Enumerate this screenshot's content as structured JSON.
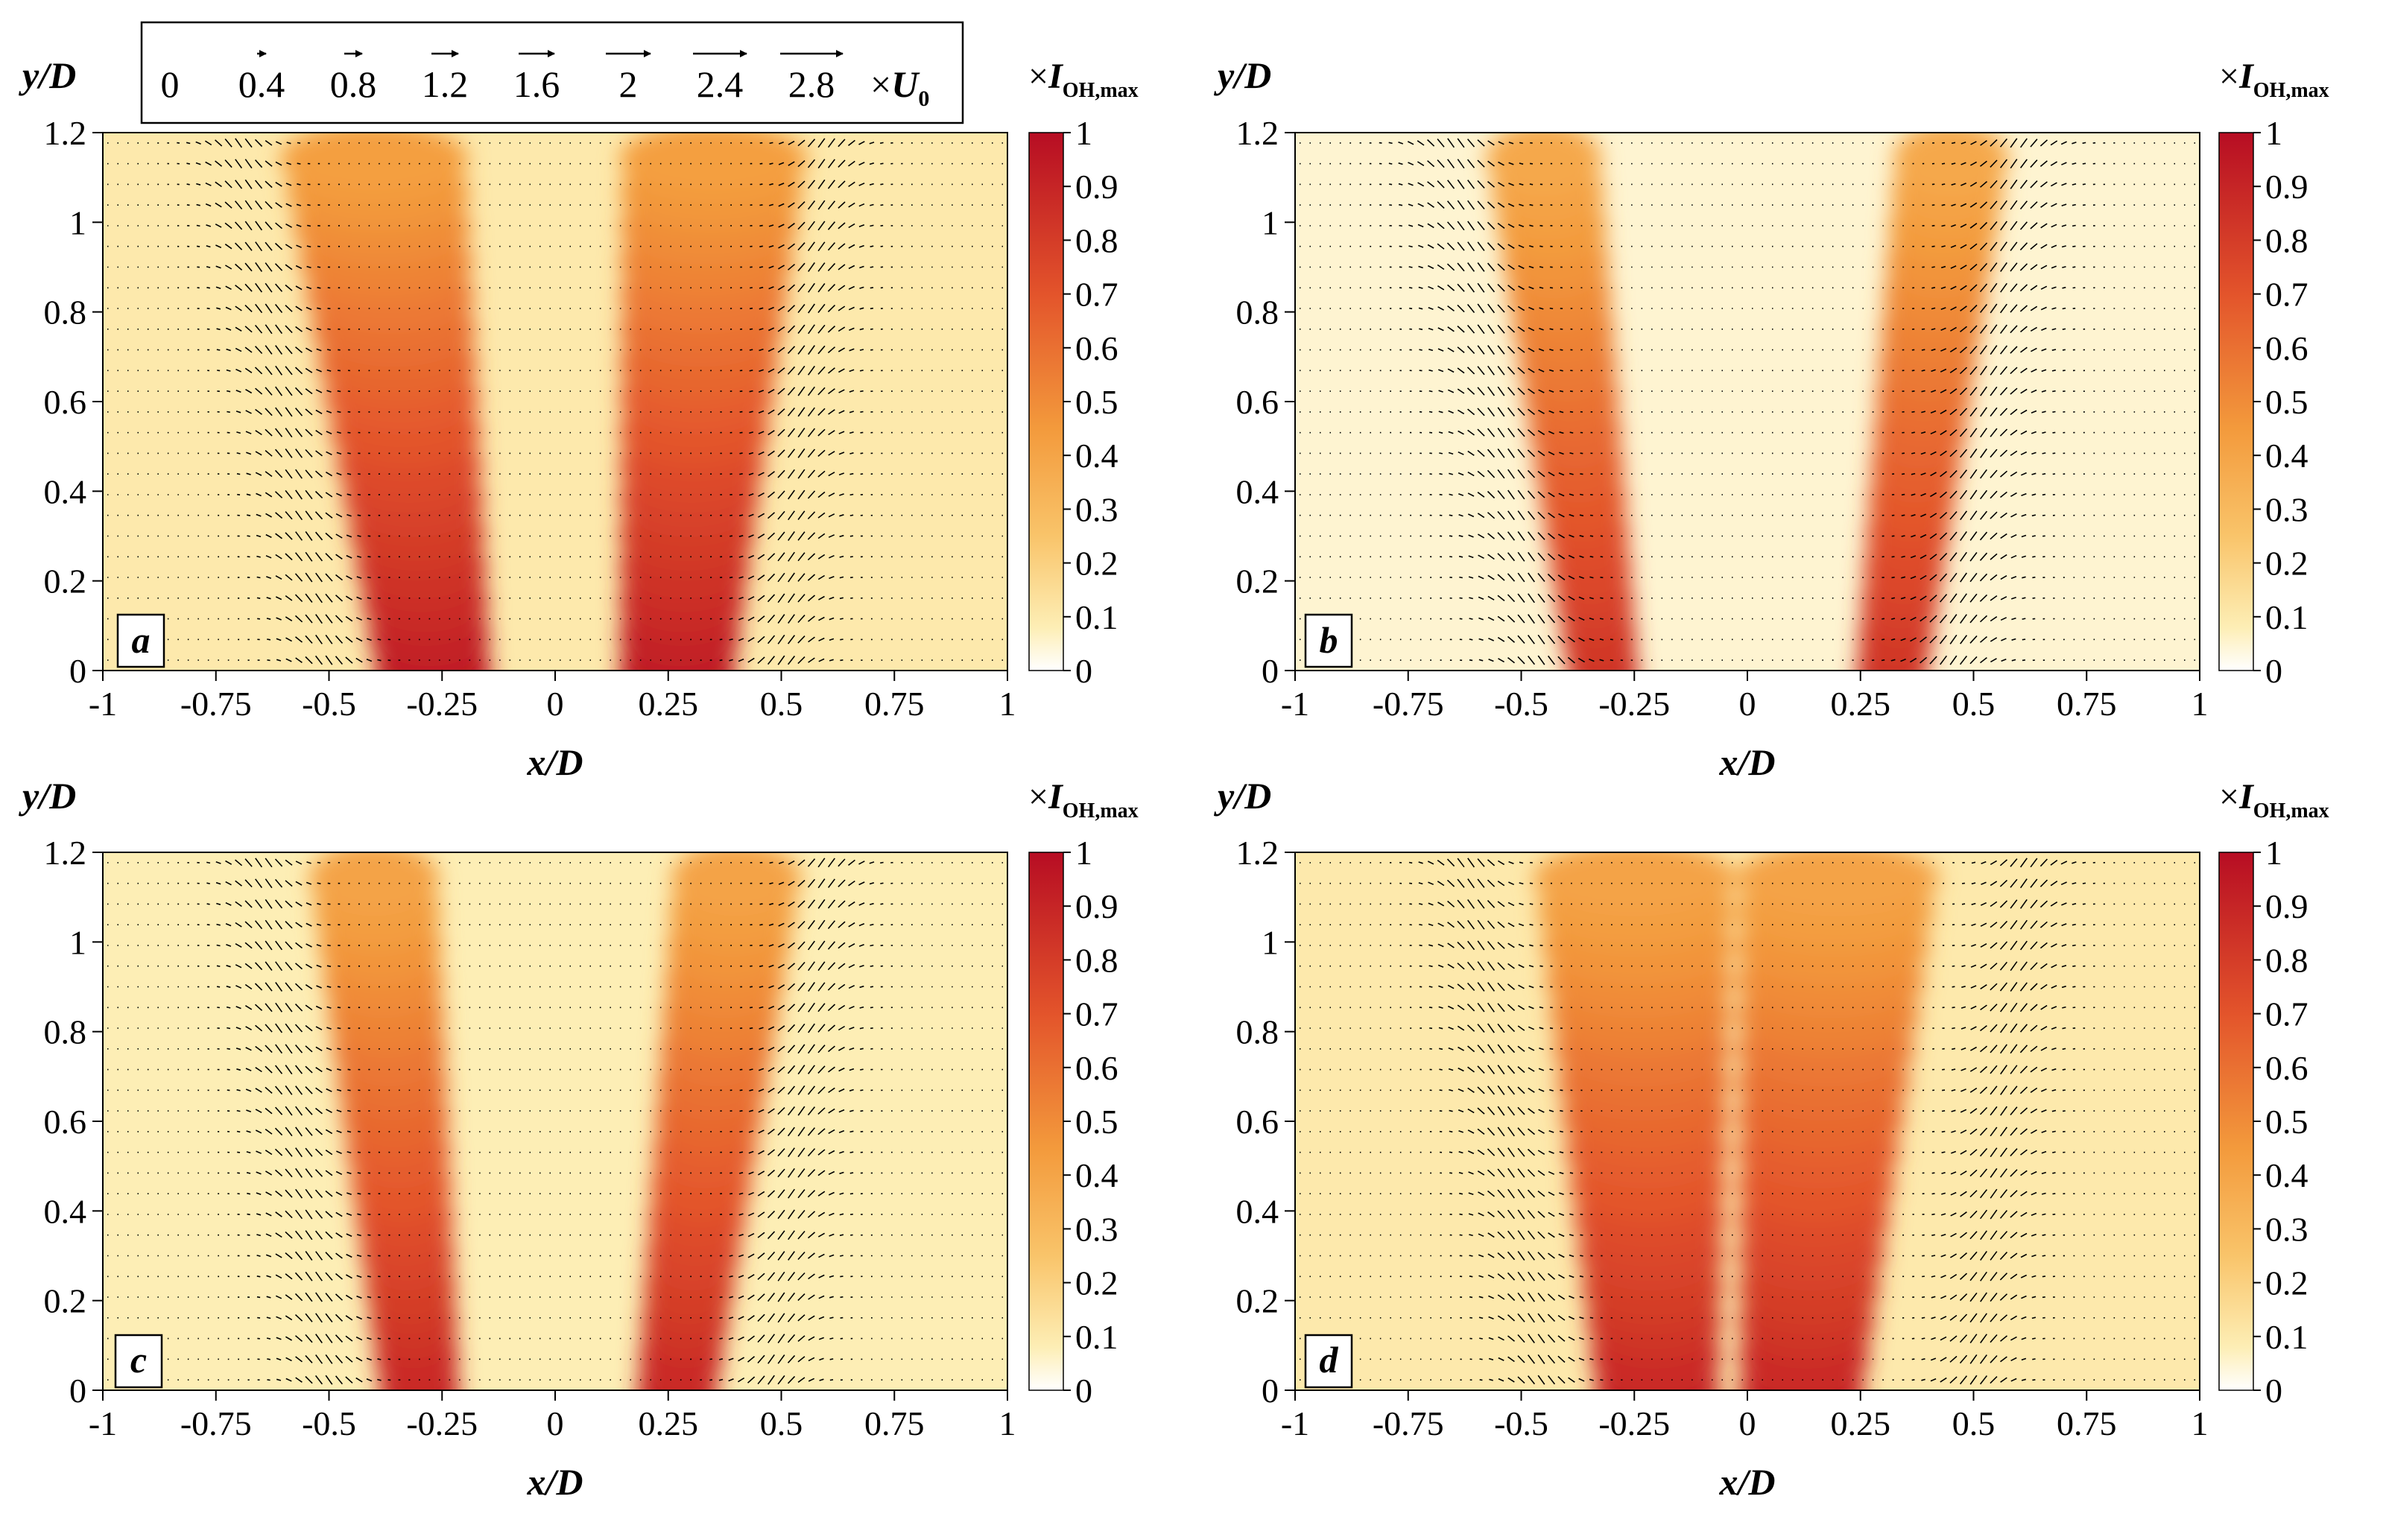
{
  "velocity_legend": {
    "labels": [
      "0",
      "0.4",
      "0.8",
      "1.2",
      "1.6",
      "2",
      "2.4",
      "2.8"
    ],
    "magnitudes": [
      0,
      0.4,
      0.8,
      1.2,
      1.6,
      2,
      2.4,
      2.8
    ],
    "unit_prefix": "×",
    "unit_symbol": "U",
    "unit_subscript": "0"
  },
  "colormap": {
    "stops": [
      "#ffffff",
      "#fdeeb5",
      "#f9c46a",
      "#f39a3c",
      "#e3542b",
      "#b70d23"
    ],
    "stop_values": [
      0,
      0.08,
      0.25,
      0.45,
      0.7,
      1.0
    ]
  },
  "chart_data": [
    {
      "type": "heatmap",
      "panel_label": "a",
      "title": "",
      "xlabel": "x/D",
      "ylabel": "y/D",
      "xlim": [
        -1,
        1
      ],
      "ylim": [
        0,
        1.2
      ],
      "xticks": [
        "-1",
        "-0.75",
        "-0.5",
        "-0.25",
        "0",
        "0.25",
        "0.5",
        "0.75",
        "1"
      ],
      "xtick_values": [
        -1,
        -0.75,
        -0.5,
        -0.25,
        0,
        0.25,
        0.5,
        0.75,
        1
      ],
      "yticks": [
        "0",
        "0.2",
        "0.4",
        "0.6",
        "0.8",
        "1",
        "1.2"
      ],
      "ytick_values": [
        0,
        0.2,
        0.4,
        0.6,
        0.8,
        1,
        1.2
      ],
      "colorbar_label_prefix": "×",
      "colorbar_label_symbol": "I",
      "colorbar_label_subscript": "OH,max",
      "colorbar_ticks": [
        "0",
        "0.1",
        "0.2",
        "0.3",
        "0.4",
        "0.5",
        "0.6",
        "0.7",
        "0.8",
        "0.9",
        "1"
      ],
      "colorbar_tick_values": [
        0,
        0.1,
        0.2,
        0.3,
        0.4,
        0.5,
        0.6,
        0.7,
        0.8,
        0.9,
        1
      ],
      "colorbar_range": [
        0,
        1
      ],
      "intensity_ridges": [
        {
          "x_at_base": -0.27,
          "x_at_top": -0.4,
          "peak": 0.95,
          "width": 0.13
        },
        {
          "x_at_base": 0.27,
          "x_at_top": 0.35,
          "peak": 0.95,
          "width": 0.13
        }
      ],
      "background_level": 0.1,
      "shear_layers": [
        {
          "x_at_base": -0.5,
          "x_at_top": -0.7,
          "width": 0.1
        },
        {
          "x_at_base": 0.5,
          "x_at_top": 0.6,
          "width": 0.1
        }
      ]
    },
    {
      "type": "heatmap",
      "panel_label": "b",
      "title": "",
      "xlabel": "x/D",
      "ylabel": "y/D",
      "xlim": [
        -1,
        1
      ],
      "ylim": [
        0,
        1.2
      ],
      "xticks": [
        "-1",
        "-0.75",
        "-0.5",
        "-0.25",
        "0",
        "0.25",
        "0.5",
        "0.75",
        "1"
      ],
      "xtick_values": [
        -1,
        -0.75,
        -0.5,
        -0.25,
        0,
        0.25,
        0.5,
        0.75,
        1
      ],
      "yticks": [
        "0",
        "0.2",
        "0.4",
        "0.6",
        "0.8",
        "1",
        "1.2"
      ],
      "ytick_values": [
        0,
        0.2,
        0.4,
        0.6,
        0.8,
        1,
        1.2
      ],
      "colorbar_label_prefix": "×",
      "colorbar_label_symbol": "I",
      "colorbar_label_subscript": "OH,max",
      "colorbar_ticks": [
        "0",
        "0.1",
        "0.2",
        "0.3",
        "0.4",
        "0.5",
        "0.6",
        "0.7",
        "0.8",
        "0.9",
        "1"
      ],
      "colorbar_tick_values": [
        0,
        0.1,
        0.2,
        0.3,
        0.4,
        0.5,
        0.6,
        0.7,
        0.8,
        0.9,
        1
      ],
      "colorbar_range": [
        0,
        1
      ],
      "intensity_ridges": [
        {
          "x_at_base": -0.32,
          "x_at_top": -0.45,
          "peak": 0.85,
          "width": 0.08
        },
        {
          "x_at_base": 0.32,
          "x_at_top": 0.45,
          "peak": 0.85,
          "width": 0.08
        }
      ],
      "background_level": 0.05,
      "shear_layers": [
        {
          "x_at_base": -0.45,
          "x_at_top": -0.65,
          "width": 0.12
        },
        {
          "x_at_base": 0.45,
          "x_at_top": 0.6,
          "width": 0.12
        }
      ]
    },
    {
      "type": "heatmap",
      "panel_label": "c",
      "title": "",
      "xlabel": "x/D",
      "ylabel": "y/D",
      "xlim": [
        -1,
        1
      ],
      "ylim": [
        0,
        1.2
      ],
      "xticks": [
        "-1",
        "-0.75",
        "-0.5",
        "-0.25",
        "0",
        "0.25",
        "0.5",
        "0.75",
        "1"
      ],
      "xtick_values": [
        -1,
        -0.75,
        -0.5,
        -0.25,
        0,
        0.25,
        0.5,
        0.75,
        1
      ],
      "yticks": [
        "0",
        "0.2",
        "0.4",
        "0.6",
        "0.8",
        "1",
        "1.2"
      ],
      "ytick_values": [
        0,
        0.2,
        0.4,
        0.6,
        0.8,
        1,
        1.2
      ],
      "colorbar_label_prefix": "×",
      "colorbar_label_symbol": "I",
      "colorbar_label_subscript": "OH,max",
      "colorbar_ticks": [
        "0",
        "0.1",
        "0.2",
        "0.3",
        "0.4",
        "0.5",
        "0.6",
        "0.7",
        "0.8",
        "0.9",
        "1"
      ],
      "colorbar_tick_values": [
        0,
        0.1,
        0.2,
        0.3,
        0.4,
        0.5,
        0.6,
        0.7,
        0.8,
        0.9,
        1
      ],
      "colorbar_range": [
        0,
        1
      ],
      "intensity_ridges": [
        {
          "x_at_base": -0.3,
          "x_at_top": -0.4,
          "peak": 0.9,
          "width": 0.09
        },
        {
          "x_at_base": 0.27,
          "x_at_top": 0.4,
          "peak": 0.9,
          "width": 0.09
        }
      ],
      "background_level": 0.08,
      "shear_layers": [
        {
          "x_at_base": -0.5,
          "x_at_top": -0.65,
          "width": 0.1
        },
        {
          "x_at_base": 0.48,
          "x_at_top": 0.6,
          "width": 0.1
        }
      ]
    },
    {
      "type": "heatmap",
      "panel_label": "d",
      "title": "",
      "xlabel": "x/D",
      "ylabel": "y/D",
      "xlim": [
        -1,
        1
      ],
      "ylim": [
        0,
        1.2
      ],
      "xticks": [
        "-1",
        "-0.75",
        "-0.5",
        "-0.25",
        "0",
        "0.25",
        "0.5",
        "0.75",
        "1"
      ],
      "xtick_values": [
        -1,
        -0.75,
        -0.5,
        -0.25,
        0,
        0.25,
        0.5,
        0.75,
        1
      ],
      "yticks": [
        "0",
        "0.2",
        "0.4",
        "0.6",
        "0.8",
        "1",
        "1.2"
      ],
      "ytick_values": [
        0,
        0.2,
        0.4,
        0.6,
        0.8,
        1,
        1.2
      ],
      "colorbar_label_prefix": "×",
      "colorbar_label_symbol": "I",
      "colorbar_label_subscript": "OH,max",
      "colorbar_ticks": [
        "0",
        "0.1",
        "0.2",
        "0.3",
        "0.4",
        "0.5",
        "0.6",
        "0.7",
        "0.8",
        "0.9",
        "1"
      ],
      "colorbar_tick_values": [
        0,
        0.1,
        0.2,
        0.3,
        0.4,
        0.5,
        0.6,
        0.7,
        0.8,
        0.9,
        1
      ],
      "colorbar_range": [
        0,
        1
      ],
      "intensity_ridges": [
        {
          "x_at_base": -0.2,
          "x_at_top": -0.25,
          "peak": 0.9,
          "width": 0.14
        },
        {
          "x_at_base": 0.12,
          "x_at_top": 0.2,
          "peak": 0.9,
          "width": 0.14
        }
      ],
      "background_level": 0.1,
      "shear_layers": [
        {
          "x_at_base": -0.45,
          "x_at_top": -0.62,
          "width": 0.1
        },
        {
          "x_at_base": 0.5,
          "x_at_top": 0.62,
          "width": 0.1
        }
      ]
    }
  ]
}
